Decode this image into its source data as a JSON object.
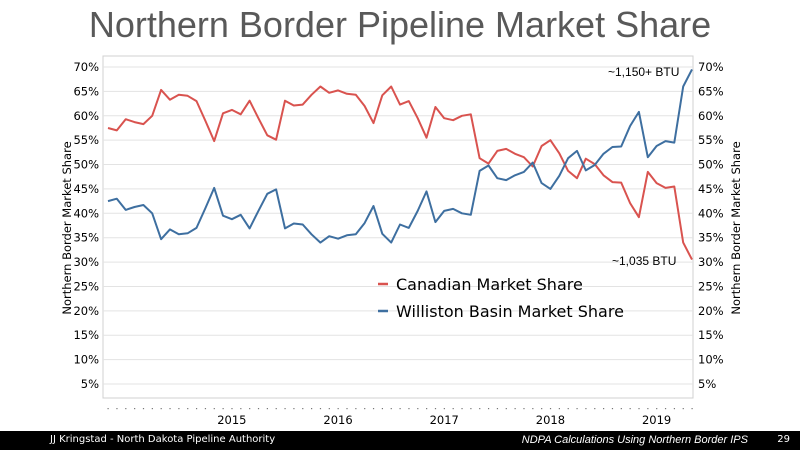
{
  "slide": {
    "title": "Northern Border Pipeline Market Share",
    "footer_left": "JJ Kringstad - North Dakota Pipeline Authority",
    "footer_right": "NDPA Calculations Using Northern Border IPS",
    "page_number": "29"
  },
  "colors": {
    "canadian": "#d9534f",
    "williston": "#3e6fa0",
    "title": "#595959",
    "footer_bg": "#000000"
  },
  "chart_data": {
    "type": "line",
    "title": "",
    "ylabel": "Northern Border Market Share",
    "ylabel_right": "Northern Border Market Share",
    "ylim": [
      0.05,
      0.7
    ],
    "yticks": [
      "5%",
      "10%",
      "15%",
      "20%",
      "25%",
      "30%",
      "35%",
      "40%",
      "45%",
      "50%",
      "55%",
      "60%",
      "65%",
      "70%"
    ],
    "x_start_year": 2014,
    "x_start_month": 5,
    "x_year_labels": [
      "2015",
      "2016",
      "2017",
      "2018",
      "2019"
    ],
    "grid": true,
    "legend_position": "center",
    "annotations": [
      "~1,150+ BTU",
      "~1,035 BTU"
    ],
    "series": [
      {
        "name": "Canadian Market Share",
        "color": "#d9534f",
        "values": [
          0.575,
          0.57,
          0.593,
          0.587,
          0.583,
          0.6,
          0.653,
          0.633,
          0.643,
          0.641,
          0.63,
          0.59,
          0.548,
          0.605,
          0.612,
          0.603,
          0.631,
          0.595,
          0.56,
          0.551,
          0.631,
          0.621,
          0.623,
          0.643,
          0.66,
          0.647,
          0.652,
          0.645,
          0.643,
          0.62,
          0.585,
          0.642,
          0.66,
          0.623,
          0.63,
          0.595,
          0.555,
          0.618,
          0.595,
          0.591,
          0.6,
          0.603,
          0.513,
          0.502,
          0.528,
          0.532,
          0.522,
          0.515,
          0.496,
          0.538,
          0.55,
          0.523,
          0.487,
          0.472,
          0.512,
          0.501,
          0.478,
          0.464,
          0.463,
          0.421,
          0.392,
          0.485,
          0.462,
          0.452,
          0.455,
          0.34,
          0.305
        ]
      },
      {
        "name": "Williston Basin Market Share",
        "color": "#3e6fa0",
        "values": [
          0.425,
          0.43,
          0.407,
          0.413,
          0.417,
          0.4,
          0.347,
          0.367,
          0.357,
          0.359,
          0.37,
          0.41,
          0.452,
          0.395,
          0.388,
          0.397,
          0.369,
          0.405,
          0.44,
          0.449,
          0.369,
          0.379,
          0.377,
          0.357,
          0.34,
          0.353,
          0.348,
          0.355,
          0.357,
          0.38,
          0.415,
          0.358,
          0.34,
          0.377,
          0.37,
          0.405,
          0.445,
          0.382,
          0.405,
          0.409,
          0.4,
          0.397,
          0.487,
          0.498,
          0.472,
          0.468,
          0.478,
          0.485,
          0.504,
          0.462,
          0.45,
          0.477,
          0.513,
          0.528,
          0.488,
          0.499,
          0.522,
          0.536,
          0.537,
          0.579,
          0.608,
          0.515,
          0.538,
          0.548,
          0.545,
          0.66,
          0.695
        ]
      }
    ]
  }
}
